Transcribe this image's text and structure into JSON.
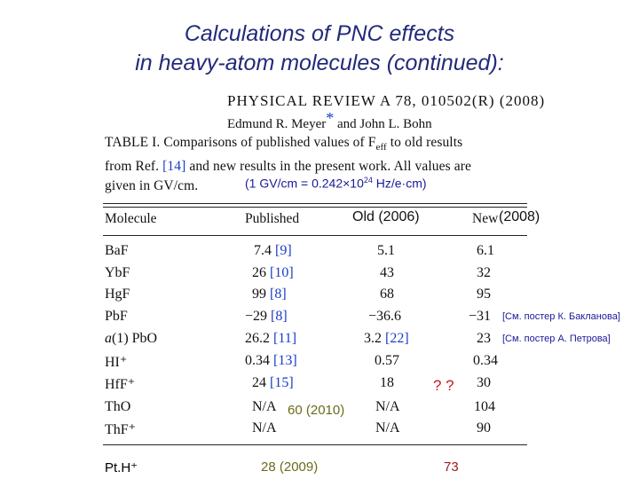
{
  "title": {
    "line1": "Calculations of PNC effects",
    "line2": "in heavy-atom molecules (continued):"
  },
  "paper": {
    "journal": "PHYSICAL REVIEW A 78, 010502(R) (2008)",
    "authors_pre": "Edmund R. Meyer",
    "authors_star": "*",
    "authors_post": " and John L. Bohn",
    "caption_l1a": "TABLE I.  Comparisons of published values of F",
    "caption_sub": "eff",
    "caption_l1b": " to old results",
    "caption_l2a": "from Ref. ",
    "caption_l2ref": "[14]",
    "caption_l2b": " and new results in the present work. All values are",
    "caption_l3": "given in GV/cm."
  },
  "conversion": {
    "pre": "(1 GV/cm = 0.242×10",
    "exp": "24",
    "post": " Hz/e·cm)"
  },
  "headers": {
    "molecule": "Molecule",
    "published": "Published",
    "old_annot": "Old (2006)",
    "new_label": "New",
    "new_annot": " (2008)"
  },
  "rows": [
    {
      "molecule": "BaF",
      "pub_val": "7.4 ",
      "pub_ref": "[9]",
      "old_val": "5.1",
      "old_ref": "",
      "new": "6.1"
    },
    {
      "molecule": "YbF",
      "pub_val": "26 ",
      "pub_ref": "[10]",
      "old_val": "43",
      "old_ref": "",
      "new": "32"
    },
    {
      "molecule": "HgF",
      "pub_val": "99 ",
      "pub_ref": "[8]",
      "old_val": "68",
      "old_ref": "",
      "new": "95"
    },
    {
      "molecule": "PbF",
      "pub_val": "−29 ",
      "pub_ref": "[8]",
      "old_val": "−36.6",
      "old_ref": "",
      "new": "−31"
    },
    {
      "molecule": "a(1) PbO",
      "pub_val": "26.2 ",
      "pub_ref": "[11]",
      "old_val": "3.2 ",
      "old_ref": "[22]",
      "new": "23"
    },
    {
      "molecule": "HI⁺",
      "pub_val": "0.34 ",
      "pub_ref": "[13]",
      "old_val": "0.57",
      "old_ref": "",
      "new": "0.34"
    },
    {
      "molecule": "HfF⁺",
      "pub_val": "24 ",
      "pub_ref": "[15]",
      "old_val": "18",
      "old_ref": "",
      "new": "30"
    },
    {
      "molecule": "ThO",
      "pub_val": "N/A",
      "pub_ref": "",
      "old_val": "N/A",
      "old_ref": "",
      "new": "104"
    },
    {
      "molecule": "ThF⁺",
      "pub_val": "N/A",
      "pub_ref": "",
      "old_val": "N/A",
      "old_ref": "",
      "new": "90"
    }
  ],
  "annotations": {
    "pbf_note": "[См. постер К. Бакланова]",
    "pbo_note": "[См. постер А. Петрова]",
    "hff_question": "? ?",
    "tho_pub": "60 (2010)"
  },
  "extra_row": {
    "molecule": "Pt.H⁺",
    "published": "28 (2009)",
    "new": "73"
  }
}
